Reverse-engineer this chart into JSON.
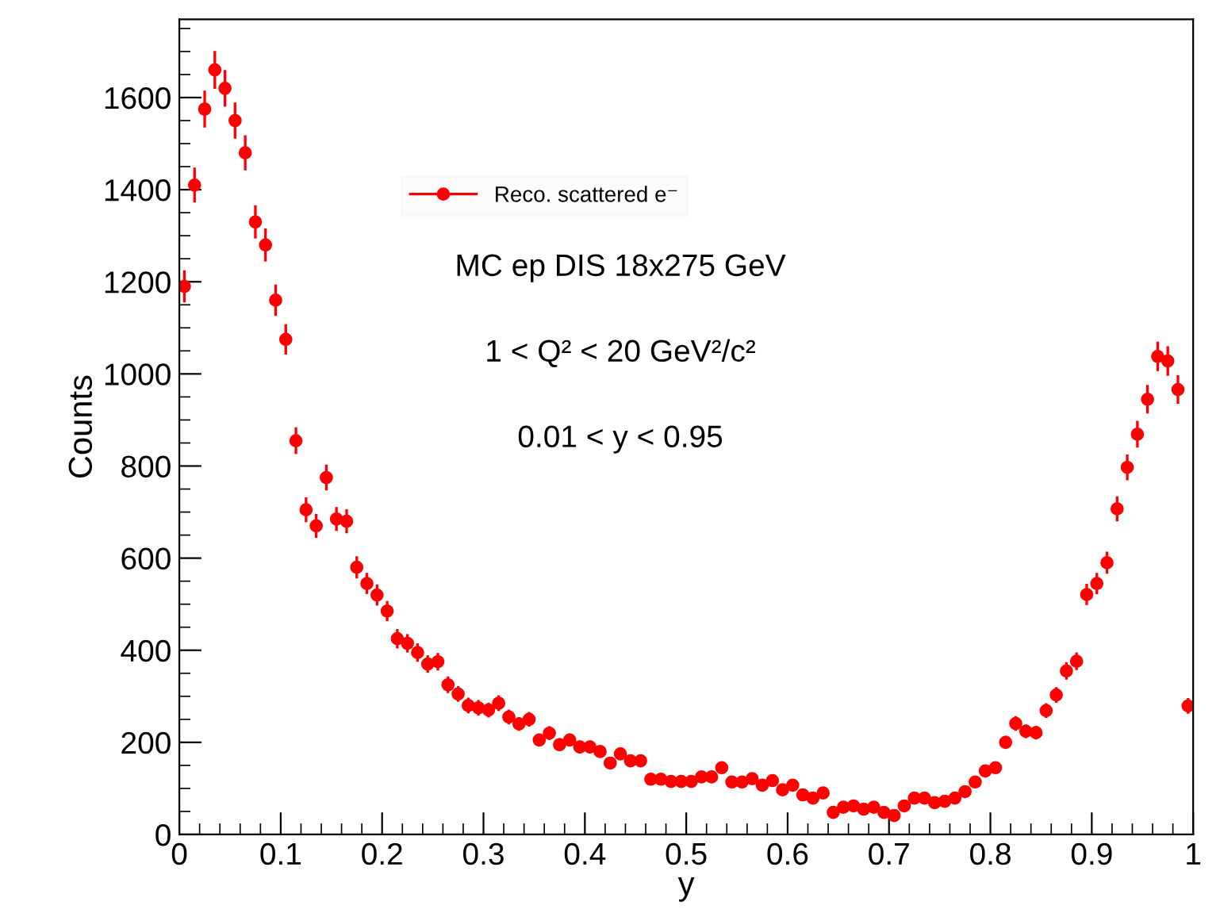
{
  "chart_data": {
    "type": "scatter",
    "xlabel": "y",
    "ylabel": "Counts",
    "xlim": [
      0,
      1
    ],
    "xticks": [
      0,
      0.1,
      0.2,
      0.3,
      0.4,
      0.5,
      0.6,
      0.7,
      0.8,
      0.9,
      1
    ],
    "ylim": [
      0,
      1770
    ],
    "yticks": [
      0,
      200,
      400,
      600,
      800,
      1000,
      1200,
      1400,
      1600
    ],
    "marker": "circle",
    "legend": "top",
    "grid": false,
    "annotations": [
      "MC ep DIS 18x275 GeV",
      "1 < Q² < 20 GeV²/c²",
      "0.01 < y < 0.95"
    ],
    "series": [
      {
        "name": "Reco. scattered e⁻",
        "color": "#ff0000",
        "x": [
          0.005,
          0.015,
          0.025,
          0.035,
          0.045,
          0.055,
          0.065,
          0.075,
          0.085,
          0.095,
          0.105,
          0.115,
          0.125,
          0.135,
          0.145,
          0.155,
          0.165,
          0.175,
          0.185,
          0.195,
          0.205,
          0.215,
          0.225,
          0.235,
          0.245,
          0.255,
          0.265,
          0.275,
          0.285,
          0.295,
          0.305,
          0.315,
          0.325,
          0.335,
          0.345,
          0.355,
          0.365,
          0.375,
          0.385,
          0.395,
          0.405,
          0.415,
          0.425,
          0.435,
          0.445,
          0.455,
          0.465,
          0.475,
          0.485,
          0.495,
          0.505,
          0.515,
          0.525,
          0.535,
          0.545,
          0.555,
          0.565,
          0.575,
          0.585,
          0.595,
          0.605,
          0.615,
          0.625,
          0.635,
          0.645,
          0.655,
          0.665,
          0.675,
          0.685,
          0.695,
          0.705,
          0.715,
          0.725,
          0.735,
          0.745,
          0.755,
          0.765,
          0.775,
          0.785,
          0.795,
          0.805,
          0.815,
          0.825,
          0.835,
          0.845,
          0.855,
          0.865,
          0.875,
          0.885,
          0.895,
          0.905,
          0.915,
          0.925,
          0.935,
          0.945,
          0.955,
          0.965,
          0.975,
          0.985,
          0.995
        ],
        "values": [
          1190,
          1410,
          1575,
          1660,
          1620,
          1550,
          1480,
          1330,
          1280,
          1160,
          1075,
          855,
          705,
          670,
          775,
          685,
          680,
          580,
          545,
          520,
          485,
          425,
          415,
          395,
          370,
          375,
          325,
          305,
          280,
          275,
          270,
          285,
          255,
          240,
          250,
          205,
          220,
          195,
          205,
          190,
          190,
          180,
          155,
          175,
          160,
          160,
          120,
          120,
          115,
          115,
          115,
          125,
          125,
          145,
          114,
          114,
          121,
          107,
          117,
          97,
          107,
          86,
          79,
          90,
          48,
          59,
          62,
          55,
          59,
          48,
          41,
          62,
          79,
          79,
          69,
          72,
          79,
          93,
          114,
          138,
          145,
          200,
          241,
          224,
          221,
          269,
          303,
          355,
          376,
          521,
          545,
          590,
          707,
          797,
          869,
          945,
          1038,
          1028,
          966,
          279
        ],
        "errors": [
          35,
          38,
          40,
          41,
          40,
          39,
          38,
          36,
          36,
          34,
          33,
          29,
          27,
          26,
          28,
          26,
          26,
          24,
          23,
          23,
          22,
          21,
          20,
          20,
          19,
          19,
          18,
          17,
          17,
          17,
          16,
          17,
          16,
          15,
          16,
          14,
          15,
          14,
          14,
          14,
          14,
          13,
          12,
          13,
          13,
          13,
          11,
          11,
          11,
          11,
          11,
          11,
          11,
          12,
          11,
          11,
          11,
          10,
          11,
          10,
          10,
          9,
          9,
          9,
          7,
          8,
          8,
          7,
          8,
          7,
          6,
          8,
          9,
          9,
          8,
          8,
          9,
          10,
          11,
          12,
          12,
          14,
          16,
          15,
          15,
          16,
          17,
          19,
          19,
          23,
          23,
          24,
          27,
          28,
          29,
          31,
          32,
          32,
          31,
          17
        ]
      }
    ]
  }
}
